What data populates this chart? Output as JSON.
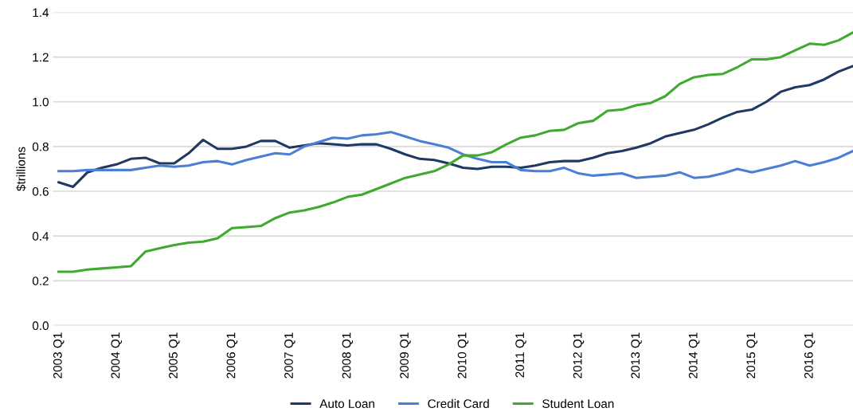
{
  "chart_data": {
    "type": "line",
    "ylabel": "$trillions",
    "categories": [
      "2003 Q1",
      null,
      null,
      null,
      "2004 Q1",
      null,
      null,
      null,
      "2005 Q1",
      null,
      null,
      null,
      "2006 Q1",
      null,
      null,
      null,
      "2007 Q1",
      null,
      null,
      null,
      "2008 Q1",
      null,
      null,
      null,
      "2009 Q1",
      null,
      null,
      null,
      "2010 Q1",
      null,
      null,
      null,
      "2011 Q1",
      null,
      null,
      null,
      "2012 Q1",
      null,
      null,
      null,
      "2013 Q1",
      null,
      null,
      null,
      "2014 Q1",
      null,
      null,
      null,
      "2015 Q1",
      null,
      null,
      null,
      "2016 Q1",
      null,
      null,
      null
    ],
    "series": [
      {
        "name": "Auto Loan",
        "color": "#1f3864",
        "values": [
          0.64,
          0.62,
          0.685,
          0.705,
          0.72,
          0.745,
          0.75,
          0.725,
          0.725,
          0.77,
          0.83,
          0.79,
          0.79,
          0.8,
          0.825,
          0.825,
          0.795,
          0.805,
          0.815,
          0.81,
          0.805,
          0.81,
          0.81,
          0.79,
          0.765,
          0.745,
          0.74,
          0.725,
          0.705,
          0.7,
          0.71,
          0.71,
          0.705,
          0.715,
          0.73,
          0.735,
          0.735,
          0.75,
          0.77,
          0.78,
          0.795,
          0.815,
          0.845,
          0.86,
          0.875,
          0.9,
          0.93,
          0.955,
          0.965,
          1.0,
          1.045,
          1.065,
          1.075,
          1.1,
          1.135,
          1.16
        ]
      },
      {
        "name": "Credit Card",
        "color": "#4a7fd4",
        "values": [
          0.69,
          0.69,
          0.695,
          0.695,
          0.695,
          0.695,
          0.705,
          0.715,
          0.71,
          0.715,
          0.73,
          0.735,
          0.72,
          0.74,
          0.755,
          0.77,
          0.765,
          0.8,
          0.82,
          0.84,
          0.835,
          0.85,
          0.855,
          0.865,
          0.845,
          0.825,
          0.81,
          0.795,
          0.765,
          0.745,
          0.73,
          0.73,
          0.695,
          0.69,
          0.69,
          0.705,
          0.68,
          0.67,
          0.675,
          0.68,
          0.66,
          0.665,
          0.67,
          0.685,
          0.66,
          0.665,
          0.68,
          0.7,
          0.685,
          0.7,
          0.715,
          0.735,
          0.715,
          0.73,
          0.75,
          0.78
        ]
      },
      {
        "name": "Student Loan",
        "color": "#3faa2f",
        "values": [
          0.24,
          0.24,
          0.25,
          0.255,
          0.26,
          0.265,
          0.33,
          0.345,
          0.36,
          0.37,
          0.375,
          0.39,
          0.435,
          0.44,
          0.445,
          0.48,
          0.505,
          0.515,
          0.53,
          0.55,
          0.575,
          0.585,
          0.61,
          0.635,
          0.66,
          0.675,
          0.69,
          0.72,
          0.76,
          0.76,
          0.775,
          0.81,
          0.84,
          0.85,
          0.87,
          0.875,
          0.905,
          0.915,
          0.96,
          0.965,
          0.985,
          0.995,
          1.025,
          1.08,
          1.11,
          1.12,
          1.125,
          1.155,
          1.19,
          1.19,
          1.2,
          1.23,
          1.26,
          1.255,
          1.275,
          1.31
        ]
      }
    ],
    "ylim": [
      0,
      1.4
    ],
    "yticks": [
      {
        "value": 0,
        "label": "0.0"
      },
      {
        "value": 0.2,
        "label": "0.2"
      },
      {
        "value": 0.4,
        "label": "0.4"
      },
      {
        "value": 0.6,
        "label": "0.6"
      },
      {
        "value": 0.8,
        "label": "0.8"
      },
      {
        "value": 1.0,
        "label": "1.0"
      },
      {
        "value": 1.2,
        "label": "1.2"
      },
      {
        "value": 1.4,
        "label": "1.4"
      }
    ],
    "grid": "y",
    "legend": "bottom",
    "marker": "none",
    "line_style": "solid"
  }
}
